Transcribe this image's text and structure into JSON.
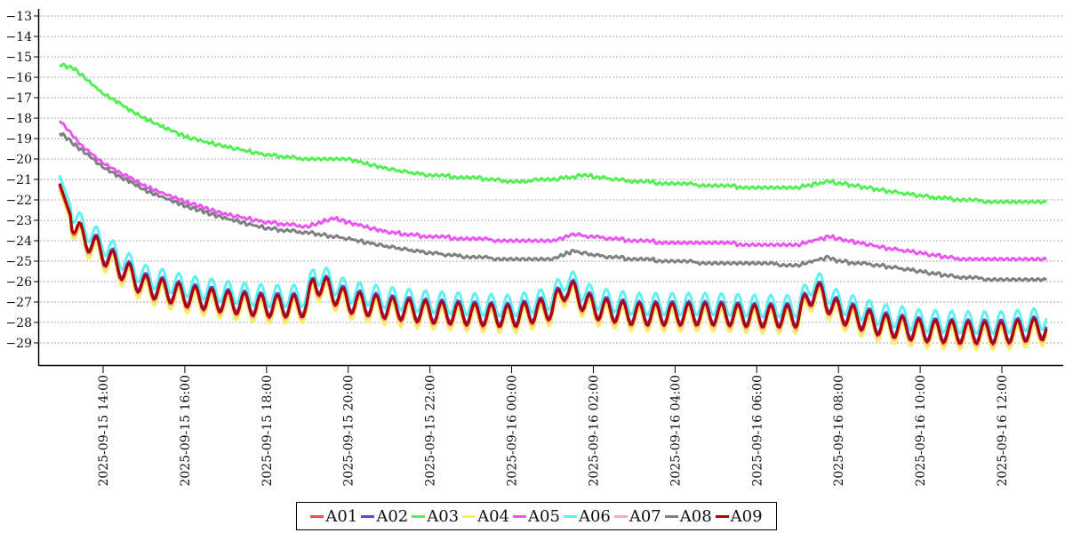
{
  "chart_data": {
    "type": "line",
    "title": "",
    "xlabel": "",
    "ylabel": "",
    "ylim": [
      -30,
      -13
    ],
    "yticks": [
      -13,
      -14,
      -15,
      -16,
      -17,
      -18,
      -19,
      -20,
      -21,
      -22,
      -23,
      -24,
      -25,
      -26,
      -27,
      -28,
      -29
    ],
    "x_range": [
      "2025-09-15 12:56",
      "2025-09-16 13:06"
    ],
    "xticks": [
      "2025-09-15 14:00",
      "2025-09-15 16:00",
      "2025-09-15 18:00",
      "2025-09-15 20:00",
      "2025-09-15 22:00",
      "2025-09-16 00:00",
      "2025-09-16 02:00",
      "2025-09-16 04:00",
      "2025-09-16 06:00",
      "2025-09-16 08:00",
      "2025-09-16 10:00",
      "2025-09-16 12:00"
    ],
    "grid": "horizontal-dashed",
    "legend_position": "bottom",
    "series": [
      {
        "name": "A01",
        "color": "#f05050",
        "x": [
          "2025-09-15 12:56",
          "2025-09-15 13:20",
          "2025-09-15 13:45",
          "2025-09-15 14:20",
          "2025-09-15 15:00",
          "2025-09-15 16:00",
          "2025-09-15 17:00",
          "2025-09-15 18:00",
          "2025-09-15 19:00",
          "2025-09-15 19:10",
          "2025-09-15 20:00",
          "2025-09-15 21:00",
          "2025-09-15 22:00",
          "2025-09-15 23:00",
          "2025-09-16 00:00",
          "2025-09-16 01:00",
          "2025-09-16 01:20",
          "2025-09-16 02:00",
          "2025-09-16 03:00",
          "2025-09-16 04:00",
          "2025-09-16 05:00",
          "2025-09-16 06:00",
          "2025-09-16 07:00",
          "2025-09-16 07:25",
          "2025-09-16 08:00",
          "2025-09-16 09:00",
          "2025-09-16 10:00",
          "2025-09-16 11:00",
          "2025-09-16 12:00",
          "2025-09-16 13:06"
        ],
        "values": [
          -21.3,
          -23.6,
          -24.2,
          -25.2,
          -26.2,
          -26.7,
          -27.0,
          -27.2,
          -27.2,
          -26.0,
          -27.0,
          -27.3,
          -27.5,
          -27.6,
          -27.7,
          -27.3,
          -26.3,
          -27.3,
          -27.6,
          -27.6,
          -27.6,
          -27.7,
          -27.7,
          -26.4,
          -27.5,
          -28.1,
          -28.4,
          -28.5,
          -28.5,
          -28.3
        ]
      },
      {
        "name": "A02",
        "color": "#5050d0",
        "x": [
          "2025-09-15 12:56",
          "2025-09-15 13:20",
          "2025-09-15 13:45",
          "2025-09-15 14:20",
          "2025-09-15 15:00",
          "2025-09-15 16:00",
          "2025-09-15 17:00",
          "2025-09-15 18:00",
          "2025-09-15 19:00",
          "2025-09-15 19:10",
          "2025-09-15 20:00",
          "2025-09-15 21:00",
          "2025-09-15 22:00",
          "2025-09-15 23:00",
          "2025-09-16 00:00",
          "2025-09-16 01:00",
          "2025-09-16 01:20",
          "2025-09-16 02:00",
          "2025-09-16 03:00",
          "2025-09-16 04:00",
          "2025-09-16 05:00",
          "2025-09-16 06:00",
          "2025-09-16 07:00",
          "2025-09-16 07:25",
          "2025-09-16 08:00",
          "2025-09-16 09:00",
          "2025-09-16 10:00",
          "2025-09-16 11:00",
          "2025-09-16 12:00",
          "2025-09-16 13:06"
        ],
        "values": [
          -21.2,
          -23.5,
          -24.1,
          -25.1,
          -26.1,
          -26.6,
          -26.9,
          -27.1,
          -27.1,
          -25.9,
          -26.9,
          -27.2,
          -27.4,
          -27.5,
          -27.6,
          -27.2,
          -26.2,
          -27.2,
          -27.5,
          -27.5,
          -27.5,
          -27.6,
          -27.6,
          -26.3,
          -27.4,
          -28.0,
          -28.3,
          -28.4,
          -28.4,
          -28.2
        ]
      },
      {
        "name": "A03",
        "color": "#55ee55",
        "x": [
          "2025-09-15 12:56",
          "2025-09-15 13:15",
          "2025-09-15 14:00",
          "2025-09-15 15:00",
          "2025-09-15 16:00",
          "2025-09-15 17:00",
          "2025-09-15 18:00",
          "2025-09-15 19:00",
          "2025-09-15 20:00",
          "2025-09-15 21:00",
          "2025-09-15 22:00",
          "2025-09-15 23:00",
          "2025-09-16 00:00",
          "2025-09-16 01:00",
          "2025-09-16 01:45",
          "2025-09-16 03:00",
          "2025-09-16 04:00",
          "2025-09-16 05:00",
          "2025-09-16 06:00",
          "2025-09-16 07:00",
          "2025-09-16 07:45",
          "2025-09-16 09:00",
          "2025-09-16 10:00",
          "2025-09-16 11:00",
          "2025-09-16 12:00",
          "2025-09-16 13:06"
        ],
        "values": [
          -15.4,
          -15.5,
          -16.8,
          -18.0,
          -18.9,
          -19.4,
          -19.8,
          -20.0,
          -20.0,
          -20.5,
          -20.8,
          -20.9,
          -21.1,
          -21.0,
          -20.8,
          -21.1,
          -21.2,
          -21.3,
          -21.4,
          -21.4,
          -21.1,
          -21.5,
          -21.8,
          -22.0,
          -22.1,
          -22.1
        ]
      },
      {
        "name": "A04",
        "color": "#f8f060",
        "x": [
          "2025-09-15 12:56",
          "2025-09-15 13:20",
          "2025-09-15 13:45",
          "2025-09-15 14:20",
          "2025-09-15 15:00",
          "2025-09-15 16:00",
          "2025-09-15 17:00",
          "2025-09-15 18:00",
          "2025-09-15 19:00",
          "2025-09-15 19:10",
          "2025-09-15 20:00",
          "2025-09-15 21:00",
          "2025-09-15 22:00",
          "2025-09-15 23:00",
          "2025-09-16 00:00",
          "2025-09-16 01:00",
          "2025-09-16 01:20",
          "2025-09-16 02:00",
          "2025-09-16 03:00",
          "2025-09-16 04:00",
          "2025-09-16 05:00",
          "2025-09-16 06:00",
          "2025-09-16 07:00",
          "2025-09-16 07:25",
          "2025-09-16 08:00",
          "2025-09-16 09:00",
          "2025-09-16 10:00",
          "2025-09-16 11:00",
          "2025-09-16 12:00",
          "2025-09-16 13:06"
        ],
        "values": [
          -21.5,
          -23.8,
          -24.5,
          -25.5,
          -26.5,
          -27.0,
          -27.3,
          -27.5,
          -27.5,
          -26.3,
          -27.3,
          -27.6,
          -27.8,
          -27.9,
          -28.0,
          -27.6,
          -26.6,
          -27.6,
          -27.9,
          -27.9,
          -27.9,
          -28.0,
          -28.0,
          -26.7,
          -27.8,
          -28.4,
          -28.7,
          -28.8,
          -28.8,
          -28.6
        ]
      },
      {
        "name": "A05",
        "color": "#e858f0",
        "x": [
          "2025-09-15 12:56",
          "2025-09-15 13:30",
          "2025-09-15 14:00",
          "2025-09-15 15:00",
          "2025-09-15 16:00",
          "2025-09-15 17:00",
          "2025-09-15 18:00",
          "2025-09-15 19:00",
          "2025-09-15 19:40",
          "2025-09-15 20:00",
          "2025-09-15 21:00",
          "2025-09-15 22:00",
          "2025-09-15 23:00",
          "2025-09-16 00:00",
          "2025-09-16 01:00",
          "2025-09-16 01:30",
          "2025-09-16 02:00",
          "2025-09-16 03:00",
          "2025-09-16 04:00",
          "2025-09-16 05:00",
          "2025-09-16 06:00",
          "2025-09-16 07:00",
          "2025-09-16 07:45",
          "2025-09-16 08:00",
          "2025-09-16 09:00",
          "2025-09-16 10:00",
          "2025-09-16 11:00",
          "2025-09-16 12:00",
          "2025-09-16 13:06"
        ],
        "values": [
          -18.1,
          -19.4,
          -20.2,
          -21.3,
          -22.1,
          -22.7,
          -23.1,
          -23.3,
          -22.9,
          -23.1,
          -23.6,
          -23.8,
          -23.9,
          -24.0,
          -24.0,
          -23.7,
          -23.8,
          -24.0,
          -24.1,
          -24.1,
          -24.2,
          -24.2,
          -23.8,
          -23.9,
          -24.3,
          -24.6,
          -24.9,
          -24.9,
          -24.9
        ]
      },
      {
        "name": "A06",
        "color": "#60f0f0",
        "x": [
          "2025-09-15 12:56",
          "2025-09-15 13:20",
          "2025-09-15 13:45",
          "2025-09-15 14:20",
          "2025-09-15 15:00",
          "2025-09-15 16:00",
          "2025-09-15 17:00",
          "2025-09-15 18:00",
          "2025-09-15 19:00",
          "2025-09-15 19:10",
          "2025-09-15 20:00",
          "2025-09-15 21:00",
          "2025-09-15 22:00",
          "2025-09-15 23:00",
          "2025-09-16 00:00",
          "2025-09-16 01:00",
          "2025-09-16 01:20",
          "2025-09-16 02:00",
          "2025-09-16 03:00",
          "2025-09-16 04:00",
          "2025-09-16 05:00",
          "2025-09-16 06:00",
          "2025-09-16 07:00",
          "2025-09-16 07:25",
          "2025-09-16 08:00",
          "2025-09-16 09:00",
          "2025-09-16 10:00",
          "2025-09-16 11:00",
          "2025-09-16 12:00",
          "2025-09-16 13:06"
        ],
        "values": [
          -20.8,
          -23.0,
          -23.7,
          -24.7,
          -25.7,
          -26.2,
          -26.5,
          -26.7,
          -26.7,
          -25.5,
          -26.5,
          -26.8,
          -27.0,
          -27.1,
          -27.2,
          -26.8,
          -25.8,
          -26.8,
          -27.1,
          -27.1,
          -27.1,
          -27.2,
          -27.2,
          -25.9,
          -27.0,
          -27.6,
          -27.9,
          -28.0,
          -28.0,
          -27.8
        ]
      },
      {
        "name": "A07",
        "color": "#f4b0b0",
        "x": [
          "2025-09-15 12:56",
          "2025-09-15 13:20",
          "2025-09-15 13:45",
          "2025-09-15 14:20",
          "2025-09-15 15:00",
          "2025-09-15 16:00",
          "2025-09-15 17:00",
          "2025-09-15 18:00",
          "2025-09-15 19:00",
          "2025-09-15 19:10",
          "2025-09-15 20:00",
          "2025-09-15 21:00",
          "2025-09-15 22:00",
          "2025-09-15 23:00",
          "2025-09-16 00:00",
          "2025-09-16 01:00",
          "2025-09-16 01:20",
          "2025-09-16 02:00",
          "2025-09-16 03:00",
          "2025-09-16 04:00",
          "2025-09-16 05:00",
          "2025-09-16 06:00",
          "2025-09-16 07:00",
          "2025-09-16 07:25",
          "2025-09-16 08:00",
          "2025-09-16 09:00",
          "2025-09-16 10:00",
          "2025-09-16 11:00",
          "2025-09-16 12:00",
          "2025-09-16 13:06"
        ],
        "values": [
          -21.3,
          -23.6,
          -24.3,
          -25.3,
          -26.3,
          -26.8,
          -27.1,
          -27.3,
          -27.3,
          -26.1,
          -27.1,
          -27.4,
          -27.6,
          -27.7,
          -27.8,
          -27.4,
          -26.4,
          -27.4,
          -27.7,
          -27.7,
          -27.7,
          -27.8,
          -27.8,
          -26.5,
          -27.6,
          -28.2,
          -28.5,
          -28.6,
          -28.6,
          -28.4
        ]
      },
      {
        "name": "A08",
        "color": "#808080",
        "x": [
          "2025-09-15 12:56",
          "2025-09-15 13:30",
          "2025-09-15 14:00",
          "2025-09-15 15:00",
          "2025-09-15 16:00",
          "2025-09-15 17:00",
          "2025-09-15 18:00",
          "2025-09-15 19:00",
          "2025-09-15 20:00",
          "2025-09-15 21:00",
          "2025-09-15 22:00",
          "2025-09-15 23:00",
          "2025-09-16 00:00",
          "2025-09-16 01:00",
          "2025-09-16 01:30",
          "2025-09-16 02:00",
          "2025-09-16 03:00",
          "2025-09-16 04:00",
          "2025-09-16 05:00",
          "2025-09-16 06:00",
          "2025-09-16 07:00",
          "2025-09-16 07:45",
          "2025-09-16 08:00",
          "2025-09-16 09:00",
          "2025-09-16 10:00",
          "2025-09-16 11:00",
          "2025-09-16 12:00",
          "2025-09-16 13:06"
        ],
        "values": [
          -18.7,
          -19.6,
          -20.4,
          -21.5,
          -22.3,
          -22.9,
          -23.4,
          -23.6,
          -23.9,
          -24.3,
          -24.6,
          -24.8,
          -24.9,
          -24.9,
          -24.5,
          -24.7,
          -24.9,
          -25.0,
          -25.1,
          -25.1,
          -25.2,
          -24.8,
          -25.0,
          -25.2,
          -25.5,
          -25.8,
          -25.9,
          -25.9
        ]
      },
      {
        "name": "A09",
        "color": "#b00000",
        "x": [
          "2025-09-15 12:56",
          "2025-09-15 13:20",
          "2025-09-15 13:45",
          "2025-09-15 14:20",
          "2025-09-15 15:00",
          "2025-09-15 16:00",
          "2025-09-15 17:00",
          "2025-09-15 18:00",
          "2025-09-15 19:00",
          "2025-09-15 19:10",
          "2025-09-15 20:00",
          "2025-09-15 21:00",
          "2025-09-15 22:00",
          "2025-09-15 23:00",
          "2025-09-16 00:00",
          "2025-09-16 01:00",
          "2025-09-16 01:20",
          "2025-09-16 02:00",
          "2025-09-16 03:00",
          "2025-09-16 04:00",
          "2025-09-16 05:00",
          "2025-09-16 06:00",
          "2025-09-16 07:00",
          "2025-09-16 07:25",
          "2025-09-16 08:00",
          "2025-09-16 09:00",
          "2025-09-16 10:00",
          "2025-09-16 11:00",
          "2025-09-16 12:00",
          "2025-09-16 13:06"
        ],
        "values": [
          -21.2,
          -23.5,
          -24.2,
          -25.2,
          -26.2,
          -26.7,
          -27.0,
          -27.2,
          -27.2,
          -26.0,
          -27.0,
          -27.3,
          -27.5,
          -27.6,
          -27.7,
          -27.3,
          -26.3,
          -27.3,
          -27.6,
          -27.6,
          -27.6,
          -27.7,
          -27.7,
          -26.4,
          -27.5,
          -28.1,
          -28.4,
          -28.5,
          -28.5,
          -28.3
        ]
      }
    ]
  }
}
